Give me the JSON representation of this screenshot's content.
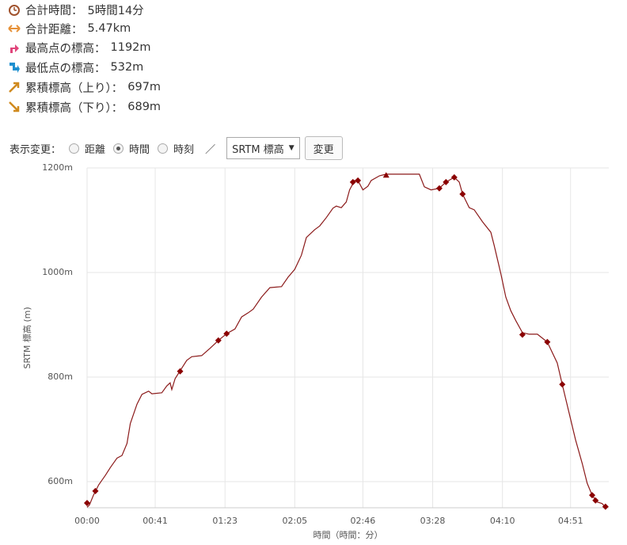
{
  "stats": [
    {
      "label": "合計時間：",
      "value": "5時間14分"
    },
    {
      "label": "合計距離：",
      "value": "5.47km"
    },
    {
      "label": "最高点の標高：",
      "value": "1192m"
    },
    {
      "label": "最低点の標高：",
      "value": "532m"
    },
    {
      "label": "累積標高（上り）：",
      "value": "697m"
    },
    {
      "label": "累積標高（下り）：",
      "value": "689m"
    }
  ],
  "controls": {
    "label": "表示変更：",
    "options": [
      "距離",
      "時間",
      "時刻"
    ],
    "selected": 1,
    "separator": "／",
    "select": "SRTM 標高",
    "button": "変更"
  },
  "chart_data": {
    "type": "line",
    "x_label": "時間（時間：分）",
    "y_label": "SRTM 標高 (m)",
    "color": "#8b1a1a",
    "grid": true,
    "xlim": [
      0,
      314
    ],
    "ylim": [
      550,
      1200
    ],
    "xticks": [
      {
        "value": 0,
        "label": "00:00"
      },
      {
        "value": 41,
        "label": "00:41"
      },
      {
        "value": 83,
        "label": "01:23"
      },
      {
        "value": 125,
        "label": "02:05"
      },
      {
        "value": 166,
        "label": "02:46"
      },
      {
        "value": 208,
        "label": "03:28"
      },
      {
        "value": 250,
        "label": "04:10"
      },
      {
        "value": 291,
        "label": "04:51"
      }
    ],
    "yticks": [
      {
        "value": 600,
        "label": "600m"
      },
      {
        "value": 800,
        "label": "800m"
      },
      {
        "value": 1000,
        "label": "1000m"
      },
      {
        "value": 1200,
        "label": "1200m"
      }
    ],
    "x": [
      0,
      1.4,
      3.8,
      7,
      11,
      14,
      18,
      21,
      24,
      26,
      30,
      33,
      37,
      39,
      45,
      48,
      50,
      51,
      53,
      56,
      60,
      63,
      69,
      74,
      79,
      84,
      89,
      93,
      97,
      100,
      105,
      110,
      117,
      121,
      125,
      129,
      132,
      137,
      140,
      144,
      148,
      150,
      153,
      156,
      158,
      161,
      163,
      166,
      169,
      171,
      176,
      180,
      200,
      203,
      207,
      212,
      216,
      221,
      224,
      226,
      230,
      233,
      238,
      243,
      245,
      249,
      252,
      255,
      258,
      262,
      266,
      271,
      277,
      283,
      286,
      290,
      294,
      298,
      301,
      304,
      307,
      310,
      312
    ],
    "values": [
      551,
      555,
      574,
      594,
      612,
      627,
      645,
      650,
      673,
      711,
      748,
      767,
      773,
      768,
      770,
      783,
      789,
      776,
      797,
      812,
      832,
      839,
      841,
      855,
      870,
      883,
      892,
      915,
      923,
      930,
      953,
      971,
      973,
      991,
      1006,
      1033,
      1067,
      1082,
      1089,
      1105,
      1123,
      1127,
      1124,
      1135,
      1158,
      1176,
      1176,
      1158,
      1165,
      1176,
      1185,
      1188,
      1188,
      1164,
      1158,
      1161,
      1173,
      1182,
      1173,
      1150,
      1124,
      1120,
      1097,
      1077,
      1052,
      998,
      953,
      927,
      908,
      885,
      882,
      882,
      867,
      827,
      786,
      733,
      680,
      635,
      597,
      574,
      561,
      558,
      551
    ],
    "markers": {
      "color": "#8b0000",
      "x": [
        0,
        5,
        56,
        79,
        84,
        160,
        163,
        212,
        216,
        221,
        226,
        262,
        277,
        286,
        304,
        306,
        312
      ],
      "values": [
        559,
        582,
        811,
        870,
        883,
        1173,
        1176,
        1161,
        1173,
        1182,
        1150,
        881,
        867,
        786,
        574,
        564,
        552
      ]
    },
    "summit": {
      "x": [
        180
      ],
      "values": [
        1186
      ]
    }
  }
}
